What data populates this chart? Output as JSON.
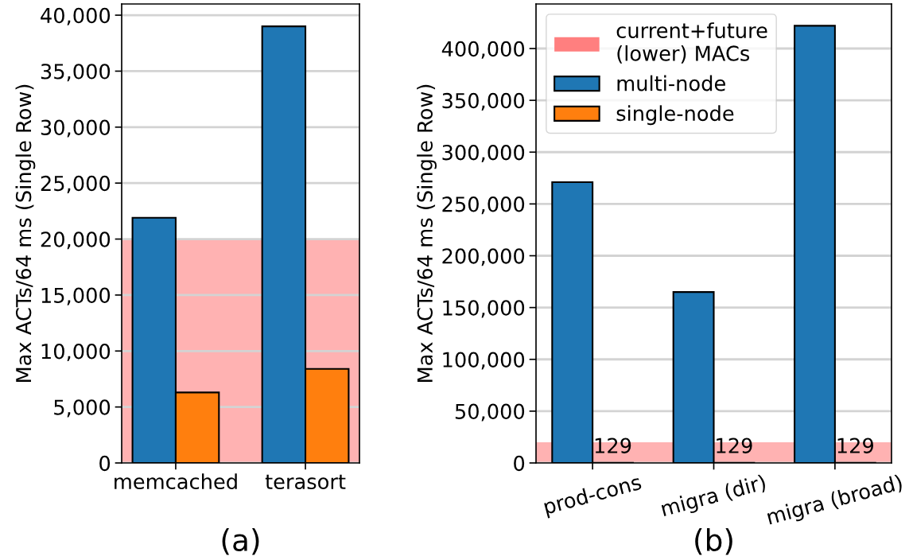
{
  "chart_data": [
    {
      "type": "bar",
      "xlabel": "(a)",
      "ylabel": "Max ACTs/64 ms (Single Row)",
      "categories": [
        "memcached",
        "terasort"
      ],
      "series": [
        {
          "color": "#1f77b4",
          "values": [
            21900,
            39000
          ]
        },
        {
          "color": "#ff7f0e",
          "values": [
            6300,
            8400
          ]
        }
      ],
      "ylim": [
        0,
        41000
      ],
      "yticks": [
        0,
        {
          "value": 5000,
          "label": "5,000"
        },
        {
          "value": 10000,
          "label": "10,000"
        },
        {
          "value": 15000,
          "label": "15,000"
        },
        {
          "value": 20000,
          "label": "20,000"
        },
        {
          "value": 25000,
          "label": "25,000"
        },
        {
          "value": 30000,
          "label": "30,000"
        },
        {
          "value": 35000,
          "label": "35,000"
        },
        {
          "value": 40000,
          "label": "40,000"
        }
      ],
      "grid": "y",
      "bands": [
        {
          "axis": "y",
          "from": 0,
          "to": 20000,
          "color": "#ff7f7f"
        }
      ]
    },
    {
      "type": "bar",
      "xlabel": "(b)",
      "ylabel": "Max ACTs/64 ms (Single Row)",
      "categories": [
        "prod-cons",
        "migra (dir)",
        "migra (broad)"
      ],
      "series": [
        {
          "name": "multi-node",
          "color": "#1f77b4",
          "values": [
            271000,
            165000,
            422000
          ]
        },
        {
          "name": "single-node",
          "color": "#ff7f0e",
          "values": [
            129,
            129,
            129
          ],
          "value_labels": [
            "129",
            "129",
            "129"
          ]
        }
      ],
      "ylim": [
        0,
        443000
      ],
      "yticks": [
        0,
        {
          "value": 50000,
          "label": "50,000"
        },
        {
          "value": 100000,
          "label": "100,000"
        },
        {
          "value": 150000,
          "label": "150,000"
        },
        {
          "value": 200000,
          "label": "200,000"
        },
        {
          "value": 250000,
          "label": "250,000"
        },
        {
          "value": 300000,
          "label": "300,000"
        },
        {
          "value": 350000,
          "label": "350,000"
        },
        {
          "value": 400000,
          "label": "400,000"
        }
      ],
      "grid": "y",
      "legend": "top left",
      "bands": [
        {
          "axis": "y",
          "from": 0,
          "to": 20000,
          "color": "#ff7f7f",
          "label": "current+future\n(lower) MACs"
        }
      ]
    }
  ]
}
